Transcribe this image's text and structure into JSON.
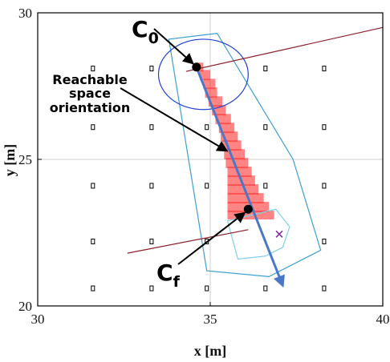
{
  "colors": {
    "frame": "#000000",
    "grid": "#cfcfcf",
    "reachable_fill": "#ff2020",
    "envelope_outer": "#3a9fd1",
    "envelope_inner": "#1f3fd6",
    "small_region": "#7fd0e8",
    "trajectory_arrow": "#4a78c8",
    "dark_red_line": "#8b1f2b",
    "cross_marker": "#7b2aa8",
    "annotation": "#000000"
  },
  "chart_data": {
    "type": "scatter",
    "title": "",
    "xlabel": "x [m]",
    "ylabel": "y [m]",
    "xlim": [
      30,
      40
    ],
    "ylim": [
      20,
      30
    ],
    "xticks": [
      "30",
      "35",
      "40"
    ],
    "yticks": [
      "20",
      "25",
      "30"
    ],
    "grid": true,
    "legend": "none",
    "obstacles": [
      {
        "x": 31.6,
        "y": 28.1
      },
      {
        "x": 33.3,
        "y": 28.1
      },
      {
        "x": 36.6,
        "y": 28.1
      },
      {
        "x": 38.3,
        "y": 28.1
      },
      {
        "x": 31.6,
        "y": 26.1
      },
      {
        "x": 33.3,
        "y": 26.1
      },
      {
        "x": 34.9,
        "y": 26.1
      },
      {
        "x": 36.6,
        "y": 26.1
      },
      {
        "x": 38.3,
        "y": 26.1
      },
      {
        "x": 31.6,
        "y": 24.1
      },
      {
        "x": 33.3,
        "y": 24.1
      },
      {
        "x": 34.9,
        "y": 24.1
      },
      {
        "x": 36.6,
        "y": 24.1
      },
      {
        "x": 38.3,
        "y": 24.1
      },
      {
        "x": 31.6,
        "y": 22.2
      },
      {
        "x": 33.3,
        "y": 22.2
      },
      {
        "x": 34.9,
        "y": 22.2
      },
      {
        "x": 38.3,
        "y": 22.2
      },
      {
        "x": 31.6,
        "y": 20.6
      },
      {
        "x": 33.3,
        "y": 20.6
      },
      {
        "x": 34.9,
        "y": 20.6
      },
      {
        "x": 36.6,
        "y": 20.6
      },
      {
        "x": 38.3,
        "y": 20.6
      }
    ],
    "reachable_rects": [
      {
        "x": 34.6,
        "y": 28.0,
        "w": 0.2,
        "h": 0.3
      },
      {
        "x": 34.7,
        "y": 27.7,
        "w": 0.3,
        "h": 0.35
      },
      {
        "x": 34.8,
        "y": 27.4,
        "w": 0.35,
        "h": 0.35
      },
      {
        "x": 34.85,
        "y": 27.1,
        "w": 0.35,
        "h": 0.35
      },
      {
        "x": 34.95,
        "y": 26.8,
        "w": 0.4,
        "h": 0.35
      },
      {
        "x": 35.05,
        "y": 26.5,
        "w": 0.4,
        "h": 0.35
      },
      {
        "x": 35.15,
        "y": 26.2,
        "w": 0.45,
        "h": 0.35
      },
      {
        "x": 35.25,
        "y": 25.9,
        "w": 0.45,
        "h": 0.35
      },
      {
        "x": 35.3,
        "y": 25.6,
        "w": 0.5,
        "h": 0.35
      },
      {
        "x": 35.35,
        "y": 25.3,
        "w": 0.55,
        "h": 0.35
      },
      {
        "x": 35.4,
        "y": 25.0,
        "w": 0.6,
        "h": 0.35
      },
      {
        "x": 35.45,
        "y": 24.7,
        "w": 0.65,
        "h": 0.35
      },
      {
        "x": 35.5,
        "y": 24.4,
        "w": 0.7,
        "h": 0.35
      },
      {
        "x": 35.5,
        "y": 24.1,
        "w": 0.8,
        "h": 0.35
      },
      {
        "x": 35.5,
        "y": 23.8,
        "w": 0.9,
        "h": 0.35
      },
      {
        "x": 35.5,
        "y": 23.5,
        "w": 1.05,
        "h": 0.35
      },
      {
        "x": 35.5,
        "y": 23.2,
        "w": 1.2,
        "h": 0.35
      },
      {
        "x": 35.5,
        "y": 22.95,
        "w": 1.35,
        "h": 0.3
      }
    ],
    "outer_envelope": [
      [
        33.8,
        29.1
      ],
      [
        35.2,
        29.3
      ],
      [
        37.4,
        25.0
      ],
      [
        38.2,
        21.9
      ],
      [
        36.7,
        21.0
      ],
      [
        34.9,
        21.2
      ]
    ],
    "inner_circle": {
      "cx": 34.8,
      "cy": 27.9,
      "rx": 1.3,
      "ry": 1.2
    },
    "small_region": [
      [
        35.5,
        22.9
      ],
      [
        36.9,
        23.3
      ],
      [
        37.3,
        22.7
      ],
      [
        37.1,
        22.0
      ],
      [
        36.6,
        21.7
      ],
      [
        35.8,
        21.6
      ]
    ],
    "trajectory_arrow": {
      "from": [
        34.6,
        28.15
      ],
      "to": [
        37.1,
        20.7
      ]
    },
    "line_top": {
      "from": [
        34.3,
        28.0
      ],
      "to": [
        40.0,
        29.5
      ]
    },
    "line_bottom": {
      "from": [
        32.6,
        21.8
      ],
      "to": [
        36.1,
        22.6
      ]
    },
    "C0": {
      "x": 34.6,
      "y": 28.15
    },
    "Cf": {
      "x": 36.1,
      "y": 23.3
    },
    "cross": {
      "x": 37.0,
      "y": 22.45
    }
  },
  "annotations": {
    "c0_label": "C",
    "c0_sub": "0",
    "cf_label": "C",
    "cf_sub": "f",
    "reach_line1": "Reachable",
    "reach_line2": "space",
    "reach_line3": "orientation"
  }
}
